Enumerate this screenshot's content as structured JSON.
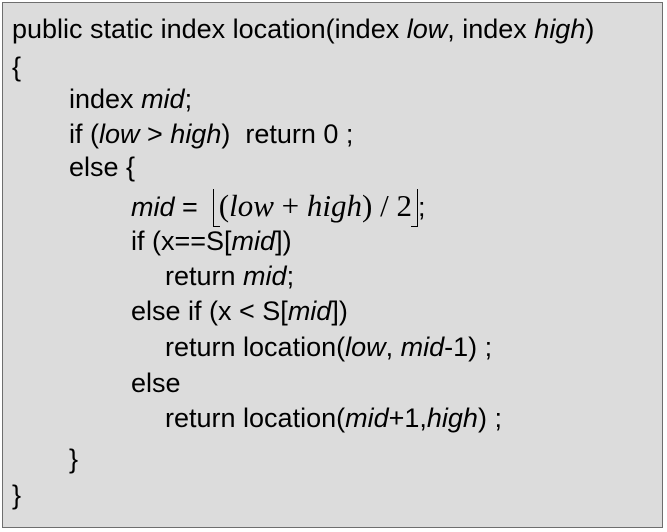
{
  "code": {
    "l1": {
      "a": "public static index location(index ",
      "b": "low",
      "c": ", index ",
      "d": "high",
      "e": ")"
    },
    "l2": {
      "a": "{"
    },
    "l3": {
      "a": "index ",
      "b": "mid",
      "c": ";"
    },
    "l4": {
      "a": "if (",
      "b": "low",
      "c": " > ",
      "d": "high",
      "e": ")  return 0 ;"
    },
    "l5": {
      "a": "else {"
    },
    "l6": {
      "a": "mid",
      "b": " =  ",
      "m_open": "(",
      "m_low": "low",
      "m_plus": " + ",
      "m_high": "high",
      "m_close": ")",
      "m_slash": " / ",
      "m_two": "2",
      "c": ";"
    },
    "l7": {
      "a": "if (x==S[",
      "b": "mid",
      "c": "])"
    },
    "l8": {
      "a": "return ",
      "b": "mid",
      "c": ";"
    },
    "l9": {
      "a": "else if (x < S[",
      "b": "mid",
      "c": "])"
    },
    "l10": {
      "a": "return location(",
      "b": "low",
      "c": ", ",
      "d": "mid",
      "e": "-1) ;"
    },
    "l11": {
      "a": "else"
    },
    "l12": {
      "a": "return location(",
      "b": "mid",
      "c": "+1,",
      "d": "high",
      "e": ") ;"
    },
    "l13": {
      "a": "}"
    },
    "l14": {
      "a": "}"
    }
  },
  "colors": {
    "background": "#dcdcdc",
    "border": "#6e6e6e",
    "text": "#000000"
  }
}
